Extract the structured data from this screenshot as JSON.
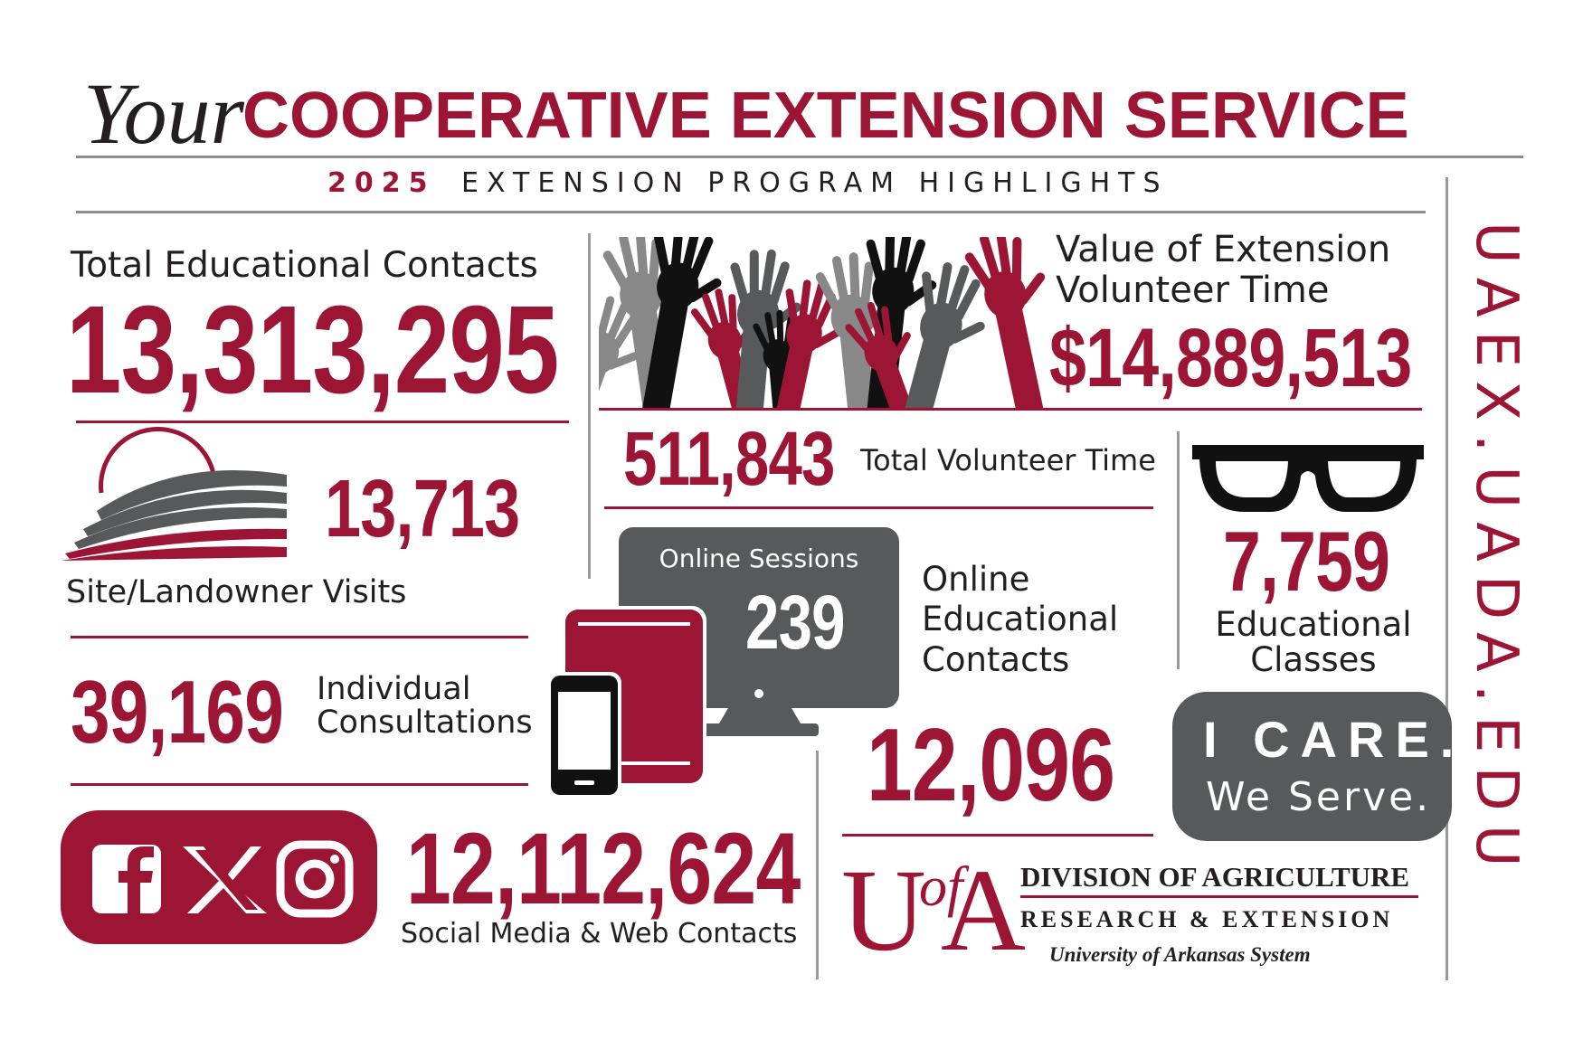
{
  "header": {
    "script": "Your",
    "title": "COOPERATIVE EXTENSION SERVICE",
    "year": "2025",
    "subtitle": "EXTENSION PROGRAM HIGHLIGHTS"
  },
  "website": "UAEX.UADA.EDU",
  "stats": {
    "educational_contacts": {
      "label": "Total Educational Contacts",
      "value": "13,313,295"
    },
    "site_visits": {
      "value": "13,713",
      "label": "Site/Landowner Visits"
    },
    "consultations": {
      "value": "39,169",
      "label": [
        "Individual",
        "Consultations"
      ]
    },
    "social_media": {
      "value": "12,112,624",
      "label": "Social Media & Web Contacts"
    },
    "volunteer_value": {
      "label": [
        "Value of Extension",
        "Volunteer Time"
      ],
      "value": "$14,889,513"
    },
    "volunteer_time": {
      "value": "511,843",
      "label": "Total Volunteer Time"
    },
    "online_sessions": {
      "label": "Online Sessions",
      "value": "239"
    },
    "online_contacts": {
      "label": [
        "Online",
        "Educational",
        "Contacts"
      ],
      "value": "12,096"
    },
    "classes": {
      "value": "7,759",
      "label": [
        "Educational",
        "Classes"
      ]
    }
  },
  "slogan": {
    "line1": "I CARE.",
    "line2": "We Serve."
  },
  "logo": {
    "mark": [
      "U",
      "of",
      "A"
    ],
    "line1": "DIVISION OF AGRICULTURE",
    "line2": "RESEARCH & EXTENSION",
    "line3": "University of Arkansas System"
  }
}
